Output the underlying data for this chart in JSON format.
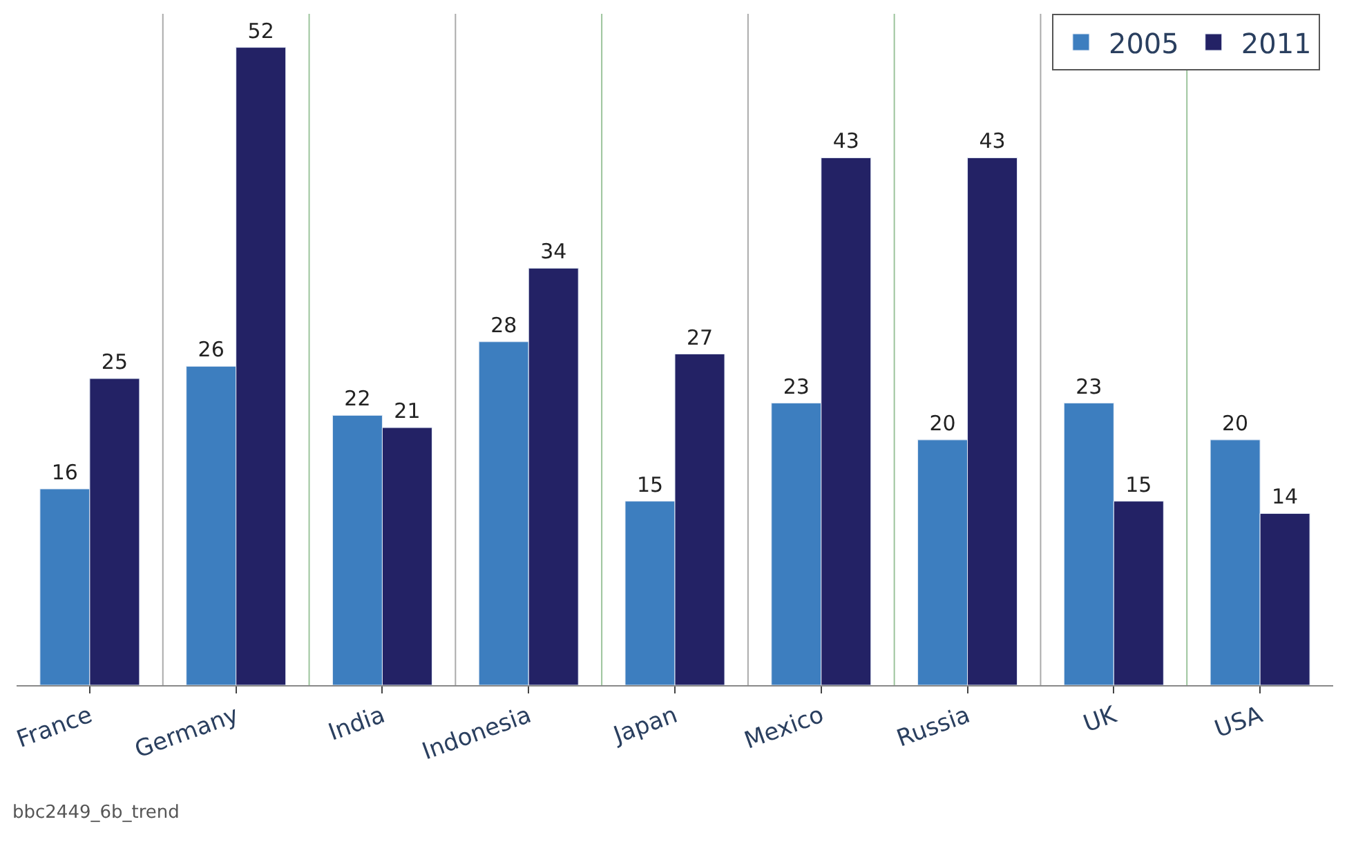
{
  "chart_data": {
    "type": "bar",
    "categories": [
      "France",
      "Germany",
      "India",
      "Indonesia",
      "Japan",
      "Mexico",
      "Russia",
      "UK",
      "USA"
    ],
    "series": [
      {
        "name": "2005",
        "color": "#3d7ebf",
        "values": [
          16,
          26,
          22,
          28,
          15,
          23,
          20,
          23,
          20
        ]
      },
      {
        "name": "2011",
        "color": "#232265",
        "values": [
          25,
          52,
          21,
          34,
          27,
          43,
          43,
          15,
          14
        ]
      }
    ],
    "data_labels": true,
    "grid": "x",
    "legend": "top right",
    "annotations": [
      "bbc2449_6b_trend"
    ]
  }
}
